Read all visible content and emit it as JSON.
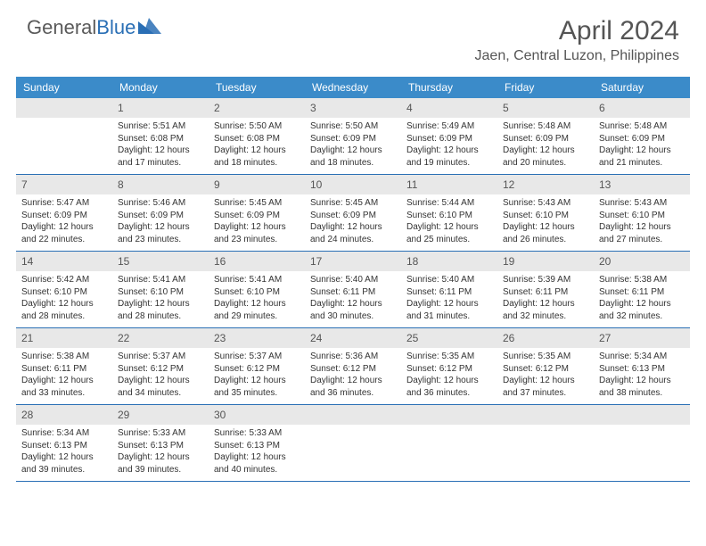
{
  "logo": {
    "text_general": "General",
    "text_blue": "Blue"
  },
  "header": {
    "title": "April 2024",
    "location": "Jaen, Central Luzon, Philippines"
  },
  "colors": {
    "header_bg": "#3b8bc9",
    "daynum_bg": "#e8e8e8",
    "week_border": "#2a6fb5",
    "logo_blue": "#2a6fb5",
    "logo_gray": "#5a5a5a",
    "text": "#333333"
  },
  "weekdays": [
    "Sunday",
    "Monday",
    "Tuesday",
    "Wednesday",
    "Thursday",
    "Friday",
    "Saturday"
  ],
  "weeks": [
    [
      null,
      {
        "n": "1",
        "sr": "Sunrise: 5:51 AM",
        "ss": "Sunset: 6:08 PM",
        "d1": "Daylight: 12 hours",
        "d2": "and 17 minutes."
      },
      {
        "n": "2",
        "sr": "Sunrise: 5:50 AM",
        "ss": "Sunset: 6:08 PM",
        "d1": "Daylight: 12 hours",
        "d2": "and 18 minutes."
      },
      {
        "n": "3",
        "sr": "Sunrise: 5:50 AM",
        "ss": "Sunset: 6:09 PM",
        "d1": "Daylight: 12 hours",
        "d2": "and 18 minutes."
      },
      {
        "n": "4",
        "sr": "Sunrise: 5:49 AM",
        "ss": "Sunset: 6:09 PM",
        "d1": "Daylight: 12 hours",
        "d2": "and 19 minutes."
      },
      {
        "n": "5",
        "sr": "Sunrise: 5:48 AM",
        "ss": "Sunset: 6:09 PM",
        "d1": "Daylight: 12 hours",
        "d2": "and 20 minutes."
      },
      {
        "n": "6",
        "sr": "Sunrise: 5:48 AM",
        "ss": "Sunset: 6:09 PM",
        "d1": "Daylight: 12 hours",
        "d2": "and 21 minutes."
      }
    ],
    [
      {
        "n": "7",
        "sr": "Sunrise: 5:47 AM",
        "ss": "Sunset: 6:09 PM",
        "d1": "Daylight: 12 hours",
        "d2": "and 22 minutes."
      },
      {
        "n": "8",
        "sr": "Sunrise: 5:46 AM",
        "ss": "Sunset: 6:09 PM",
        "d1": "Daylight: 12 hours",
        "d2": "and 23 minutes."
      },
      {
        "n": "9",
        "sr": "Sunrise: 5:45 AM",
        "ss": "Sunset: 6:09 PM",
        "d1": "Daylight: 12 hours",
        "d2": "and 23 minutes."
      },
      {
        "n": "10",
        "sr": "Sunrise: 5:45 AM",
        "ss": "Sunset: 6:09 PM",
        "d1": "Daylight: 12 hours",
        "d2": "and 24 minutes."
      },
      {
        "n": "11",
        "sr": "Sunrise: 5:44 AM",
        "ss": "Sunset: 6:10 PM",
        "d1": "Daylight: 12 hours",
        "d2": "and 25 minutes."
      },
      {
        "n": "12",
        "sr": "Sunrise: 5:43 AM",
        "ss": "Sunset: 6:10 PM",
        "d1": "Daylight: 12 hours",
        "d2": "and 26 minutes."
      },
      {
        "n": "13",
        "sr": "Sunrise: 5:43 AM",
        "ss": "Sunset: 6:10 PM",
        "d1": "Daylight: 12 hours",
        "d2": "and 27 minutes."
      }
    ],
    [
      {
        "n": "14",
        "sr": "Sunrise: 5:42 AM",
        "ss": "Sunset: 6:10 PM",
        "d1": "Daylight: 12 hours",
        "d2": "and 28 minutes."
      },
      {
        "n": "15",
        "sr": "Sunrise: 5:41 AM",
        "ss": "Sunset: 6:10 PM",
        "d1": "Daylight: 12 hours",
        "d2": "and 28 minutes."
      },
      {
        "n": "16",
        "sr": "Sunrise: 5:41 AM",
        "ss": "Sunset: 6:10 PM",
        "d1": "Daylight: 12 hours",
        "d2": "and 29 minutes."
      },
      {
        "n": "17",
        "sr": "Sunrise: 5:40 AM",
        "ss": "Sunset: 6:11 PM",
        "d1": "Daylight: 12 hours",
        "d2": "and 30 minutes."
      },
      {
        "n": "18",
        "sr": "Sunrise: 5:40 AM",
        "ss": "Sunset: 6:11 PM",
        "d1": "Daylight: 12 hours",
        "d2": "and 31 minutes."
      },
      {
        "n": "19",
        "sr": "Sunrise: 5:39 AM",
        "ss": "Sunset: 6:11 PM",
        "d1": "Daylight: 12 hours",
        "d2": "and 32 minutes."
      },
      {
        "n": "20",
        "sr": "Sunrise: 5:38 AM",
        "ss": "Sunset: 6:11 PM",
        "d1": "Daylight: 12 hours",
        "d2": "and 32 minutes."
      }
    ],
    [
      {
        "n": "21",
        "sr": "Sunrise: 5:38 AM",
        "ss": "Sunset: 6:11 PM",
        "d1": "Daylight: 12 hours",
        "d2": "and 33 minutes."
      },
      {
        "n": "22",
        "sr": "Sunrise: 5:37 AM",
        "ss": "Sunset: 6:12 PM",
        "d1": "Daylight: 12 hours",
        "d2": "and 34 minutes."
      },
      {
        "n": "23",
        "sr": "Sunrise: 5:37 AM",
        "ss": "Sunset: 6:12 PM",
        "d1": "Daylight: 12 hours",
        "d2": "and 35 minutes."
      },
      {
        "n": "24",
        "sr": "Sunrise: 5:36 AM",
        "ss": "Sunset: 6:12 PM",
        "d1": "Daylight: 12 hours",
        "d2": "and 36 minutes."
      },
      {
        "n": "25",
        "sr": "Sunrise: 5:35 AM",
        "ss": "Sunset: 6:12 PM",
        "d1": "Daylight: 12 hours",
        "d2": "and 36 minutes."
      },
      {
        "n": "26",
        "sr": "Sunrise: 5:35 AM",
        "ss": "Sunset: 6:12 PM",
        "d1": "Daylight: 12 hours",
        "d2": "and 37 minutes."
      },
      {
        "n": "27",
        "sr": "Sunrise: 5:34 AM",
        "ss": "Sunset: 6:13 PM",
        "d1": "Daylight: 12 hours",
        "d2": "and 38 minutes."
      }
    ],
    [
      {
        "n": "28",
        "sr": "Sunrise: 5:34 AM",
        "ss": "Sunset: 6:13 PM",
        "d1": "Daylight: 12 hours",
        "d2": "and 39 minutes."
      },
      {
        "n": "29",
        "sr": "Sunrise: 5:33 AM",
        "ss": "Sunset: 6:13 PM",
        "d1": "Daylight: 12 hours",
        "d2": "and 39 minutes."
      },
      {
        "n": "30",
        "sr": "Sunrise: 5:33 AM",
        "ss": "Sunset: 6:13 PM",
        "d1": "Daylight: 12 hours",
        "d2": "and 40 minutes."
      },
      null,
      null,
      null,
      null
    ]
  ]
}
